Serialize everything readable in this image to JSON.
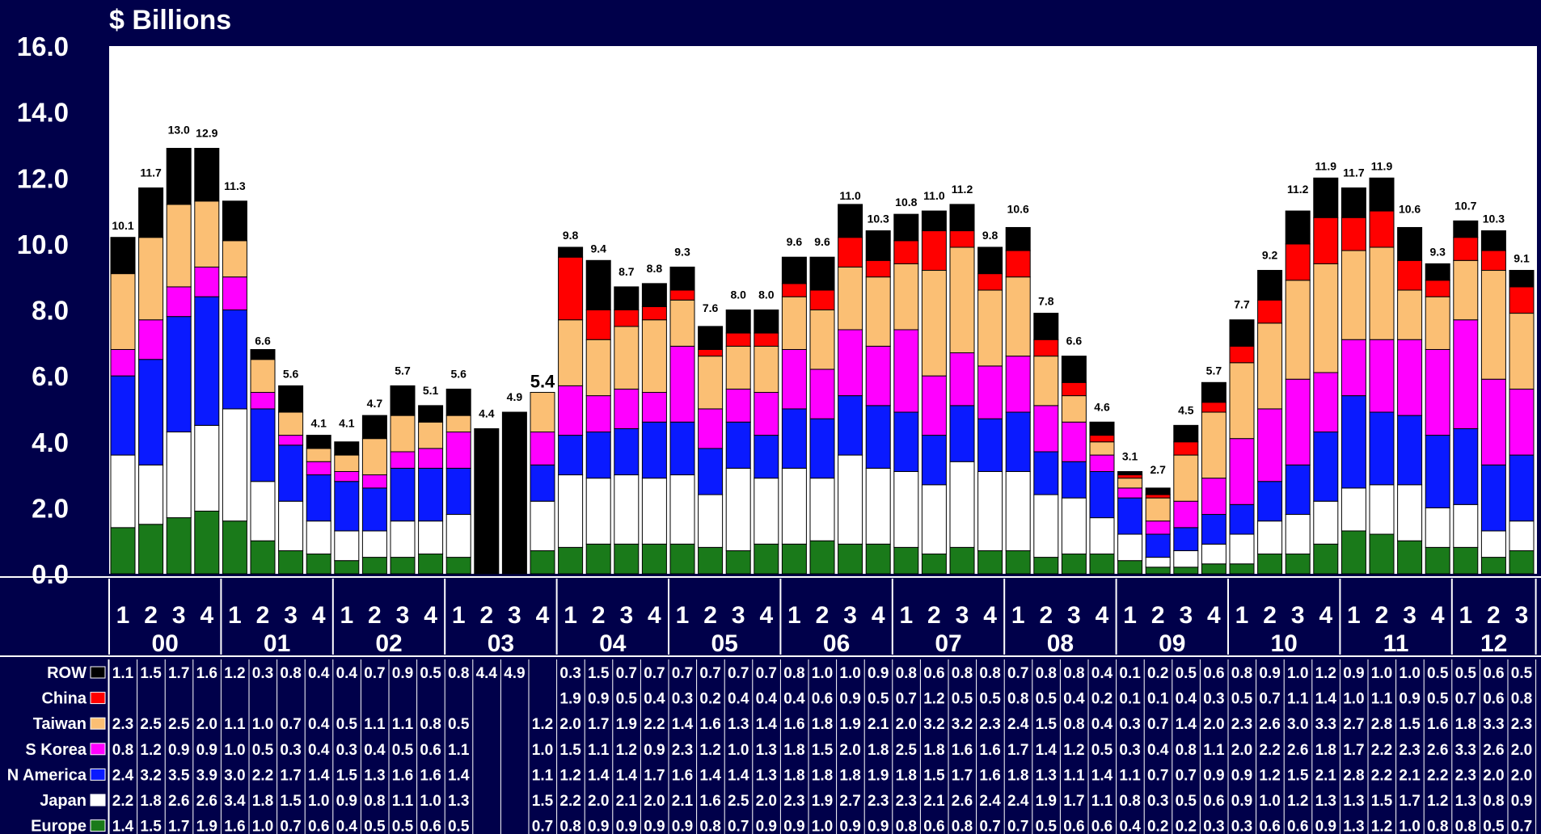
{
  "chart_data": {
    "type": "bar",
    "stacked": true,
    "title": "$ Billions",
    "ylim": [
      0,
      16
    ],
    "yticks": [
      "0.0",
      "2.0",
      "4.0",
      "6.0",
      "8.0",
      "10.0",
      "12.0",
      "14.0",
      "16.0"
    ],
    "quarters": [
      "1",
      "2",
      "3",
      "4",
      "1",
      "2",
      "3",
      "4",
      "1",
      "2",
      "3",
      "4",
      "1",
      "2",
      "3",
      "4",
      "1",
      "2",
      "3",
      "4",
      "1",
      "2",
      "3",
      "4",
      "1",
      "2",
      "3",
      "4",
      "1",
      "2",
      "3",
      "4",
      "1",
      "2",
      "3",
      "4",
      "1",
      "2",
      "3",
      "4",
      "1",
      "2",
      "3",
      "4",
      "1",
      "2",
      "3",
      "4",
      "1",
      "2",
      "3"
    ],
    "years": [
      {
        "label": "00",
        "count": 4
      },
      {
        "label": "01",
        "count": 4
      },
      {
        "label": "02",
        "count": 4
      },
      {
        "label": "03",
        "count": 4
      },
      {
        "label": "04",
        "count": 4
      },
      {
        "label": "05",
        "count": 4
      },
      {
        "label": "06",
        "count": 4
      },
      {
        "label": "07",
        "count": 4
      },
      {
        "label": "08",
        "count": 4
      },
      {
        "label": "09",
        "count": 4
      },
      {
        "label": "10",
        "count": 4
      },
      {
        "label": "11",
        "count": 4
      },
      {
        "label": "12",
        "count": 3
      }
    ],
    "totals": [
      "10.1",
      "11.7",
      "13.0",
      "12.9",
      "11.3",
      "6.6",
      "5.6",
      "4.1",
      "4.1",
      "4.7",
      "5.7",
      "5.1",
      "5.6",
      "4.4",
      "4.9",
      "5.4",
      "9.8",
      "9.4",
      "8.7",
      "8.8",
      "9.3",
      "7.6",
      "8.0",
      "8.0",
      "9.6",
      "9.6",
      "11.0",
      "10.3",
      "10.8",
      "11.0",
      "11.2",
      "9.8",
      "10.6",
      "7.8",
      "6.6",
      "4.6",
      "3.1",
      "2.7",
      "4.5",
      "5.7",
      "7.7",
      "9.2",
      "11.2",
      "11.9",
      "11.7",
      "11.9",
      "10.6",
      "9.3",
      "10.7",
      "10.3",
      "9.1"
    ],
    "series": [
      {
        "name": "Europe",
        "color": "#1a7a1a",
        "values": [
          1.4,
          1.5,
          1.7,
          1.9,
          1.6,
          1.0,
          0.7,
          0.6,
          0.4,
          0.5,
          0.5,
          0.6,
          0.5,
          null,
          null,
          0.7,
          0.8,
          0.9,
          0.9,
          0.9,
          0.9,
          0.8,
          0.7,
          0.9,
          0.9,
          1.0,
          0.9,
          0.9,
          0.8,
          0.6,
          0.8,
          0.7,
          0.7,
          0.5,
          0.6,
          0.6,
          0.4,
          0.2,
          0.2,
          0.3,
          0.3,
          0.6,
          0.6,
          0.9,
          1.3,
          1.2,
          1.0,
          0.8,
          0.8,
          0.5,
          0.7
        ]
      },
      {
        "name": "Japan",
        "color": "#ffffff",
        "values": [
          2.2,
          1.8,
          2.6,
          2.6,
          3.4,
          1.8,
          1.5,
          1.0,
          0.9,
          0.8,
          1.1,
          1.0,
          1.3,
          null,
          null,
          1.5,
          2.2,
          2.0,
          2.1,
          2.0,
          2.1,
          1.6,
          2.5,
          2.0,
          2.3,
          1.9,
          2.7,
          2.3,
          2.3,
          2.1,
          2.6,
          2.4,
          2.4,
          1.9,
          1.7,
          1.1,
          0.8,
          0.3,
          0.5,
          0.6,
          0.9,
          1.0,
          1.2,
          1.3,
          1.3,
          1.5,
          1.7,
          1.2,
          1.3,
          0.8,
          0.9
        ]
      },
      {
        "name": "N America",
        "color": "#0a1aff",
        "values": [
          2.4,
          3.2,
          3.5,
          3.9,
          3.0,
          2.2,
          1.7,
          1.4,
          1.5,
          1.3,
          1.6,
          1.6,
          1.4,
          null,
          null,
          1.1,
          1.2,
          1.4,
          1.4,
          1.7,
          1.6,
          1.4,
          1.4,
          1.3,
          1.8,
          1.8,
          1.8,
          1.9,
          1.8,
          1.5,
          1.7,
          1.6,
          1.8,
          1.3,
          1.1,
          1.4,
          1.1,
          0.7,
          0.7,
          0.9,
          0.9,
          1.2,
          1.5,
          2.1,
          2.8,
          2.2,
          2.1,
          2.2,
          2.3,
          2.0,
          2.0
        ]
      },
      {
        "name": "S Korea",
        "color": "#ff00ff",
        "values": [
          0.8,
          1.2,
          0.9,
          0.9,
          1.0,
          0.5,
          0.3,
          0.4,
          0.3,
          0.4,
          0.5,
          0.6,
          1.1,
          null,
          null,
          1.0,
          1.5,
          1.1,
          1.2,
          0.9,
          2.3,
          1.2,
          1.0,
          1.3,
          1.8,
          1.5,
          2.0,
          1.8,
          2.5,
          1.8,
          1.6,
          1.6,
          1.7,
          1.4,
          1.2,
          0.5,
          0.3,
          0.4,
          0.8,
          1.1,
          2.0,
          2.2,
          2.6,
          1.8,
          1.7,
          2.2,
          2.3,
          2.6,
          3.3,
          2.6,
          2.0
        ]
      },
      {
        "name": "Taiwan",
        "color": "#fbbf74",
        "values": [
          2.3,
          2.5,
          2.5,
          2.0,
          1.1,
          1.0,
          0.7,
          0.4,
          0.5,
          1.1,
          1.1,
          0.8,
          0.5,
          null,
          null,
          1.2,
          2.0,
          1.7,
          1.9,
          2.2,
          1.4,
          1.6,
          1.3,
          1.4,
          1.6,
          1.8,
          1.9,
          2.1,
          2.0,
          3.2,
          3.2,
          2.3,
          2.4,
          1.5,
          0.8,
          0.4,
          0.3,
          0.7,
          1.4,
          2.0,
          2.3,
          2.6,
          3.0,
          3.3,
          2.7,
          2.8,
          1.5,
          1.6,
          1.8,
          3.3,
          2.3
        ]
      },
      {
        "name": "China",
        "color": "#ff0000",
        "values": [
          null,
          null,
          null,
          null,
          null,
          null,
          null,
          null,
          null,
          null,
          null,
          null,
          null,
          null,
          null,
          null,
          1.9,
          0.9,
          0.5,
          0.4,
          0.3,
          0.2,
          0.4,
          0.4,
          0.4,
          0.6,
          0.9,
          0.5,
          0.7,
          1.2,
          0.5,
          0.5,
          0.8,
          0.5,
          0.4,
          0.2,
          0.1,
          0.1,
          0.4,
          0.3,
          0.5,
          0.7,
          1.1,
          1.4,
          1.0,
          1.1,
          0.9,
          0.5,
          0.7,
          0.6,
          0.8
        ]
      },
      {
        "name": "ROW",
        "color": "#000000",
        "values": [
          1.1,
          1.5,
          1.7,
          1.6,
          1.2,
          0.3,
          0.8,
          0.4,
          0.4,
          0.7,
          0.9,
          0.5,
          0.8,
          4.4,
          4.9,
          null,
          0.3,
          1.5,
          0.7,
          0.7,
          0.7,
          0.7,
          0.7,
          0.7,
          0.8,
          1.0,
          1.0,
          0.9,
          0.8,
          0.6,
          0.8,
          0.8,
          0.7,
          0.8,
          0.8,
          0.4,
          0.1,
          0.2,
          0.5,
          0.6,
          0.8,
          0.9,
          1.0,
          1.2,
          0.9,
          1.0,
          1.0,
          0.5,
          0.5,
          0.6,
          0.5
        ]
      }
    ]
  }
}
